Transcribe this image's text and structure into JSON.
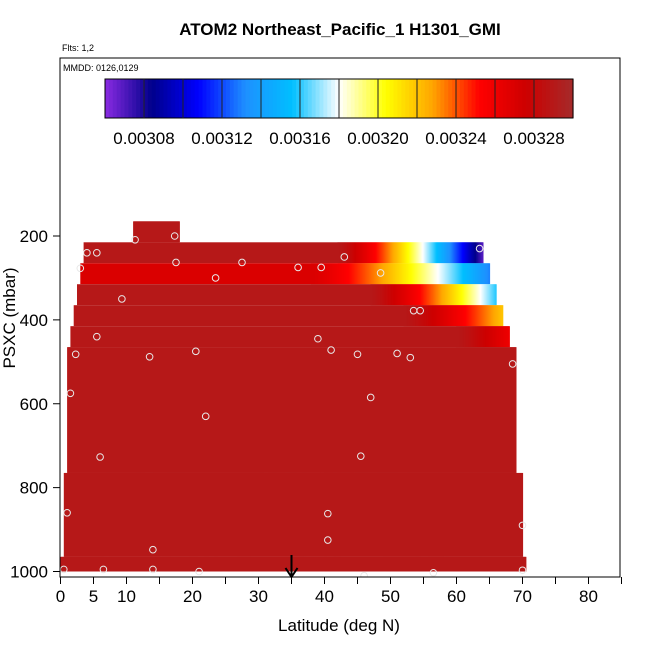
{
  "chart_data": {
    "type": "heatmap",
    "title": "ATOM2 Northeast_Pacific_1 H1301_GMI",
    "flights_label": "Flts: 1,2",
    "dates_label": "MMDD: 0126,0129",
    "xlabel": "Latitude (deg N)",
    "ylabel": "PSXC (mbar)",
    "xlim": [
      0,
      85
    ],
    "ylim": [
      1000,
      100
    ],
    "x_ticks": [
      0,
      5,
      10,
      20,
      30,
      40,
      50,
      60,
      70,
      80
    ],
    "y_ticks": [
      200,
      400,
      600,
      800,
      1000
    ],
    "colorbar": {
      "range": [
        0.00306,
        0.0033
      ],
      "tick_values": [
        0.00308,
        0.00312,
        0.00316,
        0.0032,
        0.00324,
        0.00328
      ],
      "tick_labels": [
        "0.00308",
        "0.00312",
        "0.00316",
        "0.00320",
        "0.00324",
        "0.00328"
      ],
      "colors": [
        "#8a2be2",
        "#00008b",
        "#0000ff",
        "#1e90ff",
        "#00bfff",
        "#ffffff",
        "#ffff00",
        "#ffa500",
        "#ff0000",
        "#cd0000",
        "#a52a2a"
      ]
    },
    "arrow_latitude": 35,
    "base_value": 0.00329,
    "field_rows": [
      {
        "p_top": 165,
        "p_bot": 215,
        "lat_min": 11,
        "lat_max": 18,
        "v_start": 0.00329,
        "v_end": 0.00329,
        "grad_from": 11
      },
      {
        "p_top": 215,
        "p_bot": 265,
        "lat_min": 3.5,
        "lat_max": 64,
        "v_start": 0.00329,
        "v_end": 0.00307,
        "grad_from": 42
      },
      {
        "p_top": 265,
        "p_bot": 315,
        "lat_min": 3,
        "lat_max": 65,
        "v_start": 0.00327,
        "v_end": 0.00313,
        "grad_from": 38
      },
      {
        "p_top": 315,
        "p_bot": 365,
        "lat_min": 2.5,
        "lat_max": 66,
        "v_start": 0.00329,
        "v_end": 0.00316,
        "grad_from": 47
      },
      {
        "p_top": 365,
        "p_bot": 415,
        "lat_min": 2,
        "lat_max": 67,
        "v_start": 0.00329,
        "v_end": 0.00322,
        "grad_from": 52
      },
      {
        "p_top": 415,
        "p_bot": 465,
        "lat_min": 1.5,
        "lat_max": 68,
        "v_start": 0.00329,
        "v_end": 0.00326,
        "grad_from": 60
      },
      {
        "p_top": 465,
        "p_bot": 765,
        "lat_min": 1,
        "lat_max": 69,
        "v_start": 0.00329,
        "v_end": 0.00329,
        "grad_from": 1
      },
      {
        "p_top": 765,
        "p_bot": 965,
        "lat_min": 0.5,
        "lat_max": 70,
        "v_start": 0.00329,
        "v_end": 0.00329,
        "grad_from": 0.5
      },
      {
        "p_top": 965,
        "p_bot": 1000,
        "lat_min": 0,
        "lat_max": 70.5,
        "v_start": 0.00329,
        "v_end": 0.00329,
        "grad_from": 0
      }
    ],
    "points": [
      {
        "lat": 11.3,
        "p": 209
      },
      {
        "lat": 17.3,
        "p": 200
      },
      {
        "lat": 4,
        "p": 240
      },
      {
        "lat": 5.5,
        "p": 240
      },
      {
        "lat": 3,
        "p": 277
      },
      {
        "lat": 17.5,
        "p": 263
      },
      {
        "lat": 23.5,
        "p": 300
      },
      {
        "lat": 27.5,
        "p": 263
      },
      {
        "lat": 36,
        "p": 275
      },
      {
        "lat": 39.5,
        "p": 275
      },
      {
        "lat": 43,
        "p": 250
      },
      {
        "lat": 48.5,
        "p": 288
      },
      {
        "lat": 63.5,
        "p": 230
      },
      {
        "lat": 9.3,
        "p": 350
      },
      {
        "lat": 53.5,
        "p": 378
      },
      {
        "lat": 54.5,
        "p": 378
      },
      {
        "lat": 5.5,
        "p": 440
      },
      {
        "lat": 39,
        "p": 445
      },
      {
        "lat": 2.3,
        "p": 482
      },
      {
        "lat": 13.5,
        "p": 488
      },
      {
        "lat": 20.5,
        "p": 475
      },
      {
        "lat": 41,
        "p": 472
      },
      {
        "lat": 45,
        "p": 482
      },
      {
        "lat": 51,
        "p": 480
      },
      {
        "lat": 53,
        "p": 490
      },
      {
        "lat": 68.5,
        "p": 505
      },
      {
        "lat": 1.5,
        "p": 575
      },
      {
        "lat": 47,
        "p": 585
      },
      {
        "lat": 22,
        "p": 630
      },
      {
        "lat": 6,
        "p": 727
      },
      {
        "lat": 45.5,
        "p": 725
      },
      {
        "lat": 1,
        "p": 860
      },
      {
        "lat": 40.5,
        "p": 862
      },
      {
        "lat": 70,
        "p": 890
      },
      {
        "lat": 40.5,
        "p": 925
      },
      {
        "lat": 14,
        "p": 948
      },
      {
        "lat": 0.5,
        "p": 995
      },
      {
        "lat": 6.5,
        "p": 995
      },
      {
        "lat": 14,
        "p": 995
      },
      {
        "lat": 21,
        "p": 1000
      },
      {
        "lat": 46,
        "p": 1010
      },
      {
        "lat": 56.5,
        "p": 1003
      },
      {
        "lat": 70,
        "p": 997
      }
    ]
  }
}
